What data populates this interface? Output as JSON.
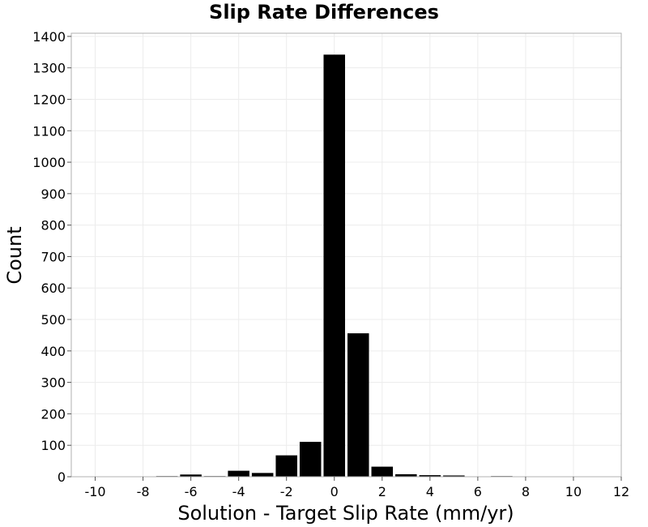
{
  "chart_data": {
    "type": "bar",
    "title": "Slip Rate Differences",
    "xlabel": "Solution - Target Slip Rate (mm/yr)",
    "ylabel": "Count",
    "xlim": [
      -11,
      12
    ],
    "ylim": [
      0,
      1410
    ],
    "xticks": [
      -10,
      -8,
      -6,
      -4,
      -2,
      0,
      2,
      4,
      6,
      8,
      10,
      12
    ],
    "yticks": [
      0,
      100,
      200,
      300,
      400,
      500,
      600,
      700,
      800,
      900,
      1000,
      1100,
      1200,
      1300,
      1400
    ],
    "bin_width": 1,
    "bar_color": "#000000",
    "grid": true,
    "bins": [
      {
        "x": -10,
        "count": 0
      },
      {
        "x": -9,
        "count": 0
      },
      {
        "x": -8,
        "count": 0
      },
      {
        "x": -7,
        "count": 2
      },
      {
        "x": -6,
        "count": 7
      },
      {
        "x": -5,
        "count": 2
      },
      {
        "x": -4,
        "count": 19
      },
      {
        "x": -3,
        "count": 12
      },
      {
        "x": -2,
        "count": 68
      },
      {
        "x": -1,
        "count": 111
      },
      {
        "x": 0,
        "count": 1342
      },
      {
        "x": 1,
        "count": 456
      },
      {
        "x": 2,
        "count": 32
      },
      {
        "x": 3,
        "count": 8
      },
      {
        "x": 4,
        "count": 5
      },
      {
        "x": 5,
        "count": 4
      },
      {
        "x": 6,
        "count": 0
      },
      {
        "x": 7,
        "count": 2
      },
      {
        "x": 8,
        "count": 0
      },
      {
        "x": 9,
        "count": 0
      },
      {
        "x": 10,
        "count": 0
      },
      {
        "x": 11,
        "count": 0
      }
    ]
  }
}
